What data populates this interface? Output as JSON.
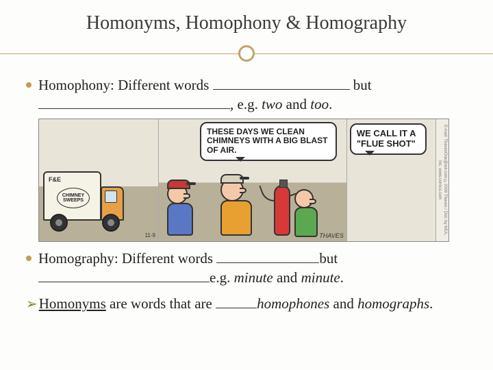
{
  "title": "Homonyms,  Homophony & Homography",
  "bullet1": {
    "lead": "Homophony: Different words ",
    "mid": " but ",
    "tail": ", e.g. ",
    "ex1": "two",
    "and": " and ",
    "ex2": "too",
    "period": "."
  },
  "bullet2": {
    "lead": "Homography: Different words ",
    "mid": "but ",
    "tail": "e.g. ",
    "ex1": "minute",
    "and": " and ",
    "ex2": "minute",
    "period": "."
  },
  "footer": {
    "arrow": "➢",
    "term": "Homonyms",
    "mid": " are words that are ",
    "tail1": "homophones",
    "and": " and ",
    "tail2": "homographs",
    "period": "."
  },
  "comic": {
    "truck_top": "F&E",
    "truck_round": "CHIMNEY SWEEPS",
    "bubble1": "THESE DAYS WE CLEAN CHIMNEYS WITH A BIG BLAST OF AIR.",
    "bubble2": "WE CALL IT A \"FLUE SHOT\"",
    "signature": "THAVES",
    "date": "11-9",
    "sidebar": "E-mail: ThavesOne@aol.com ©2009 Thaves / Dist. by NEA, Inc. www.comics.com",
    "colors": {
      "sky": "#e8e4d8",
      "ground": "#b8b099",
      "truck_body": "#f5f2e6",
      "truck_cab": "#e8a048",
      "tank": "#d83838",
      "shirt_a": "#5878c4",
      "cap_a": "#c43838",
      "shirt_b": "#e8a030",
      "shirt_c": "#5aa850"
    }
  },
  "style": {
    "title_fontsize": 28,
    "body_fontsize": 21,
    "title_color": "#3a3a3a",
    "accent_color": "#bfa46a",
    "bullet_color": "#c09f4a",
    "arrow_color": "#6b8e23",
    "background": "#fdfdfb"
  }
}
